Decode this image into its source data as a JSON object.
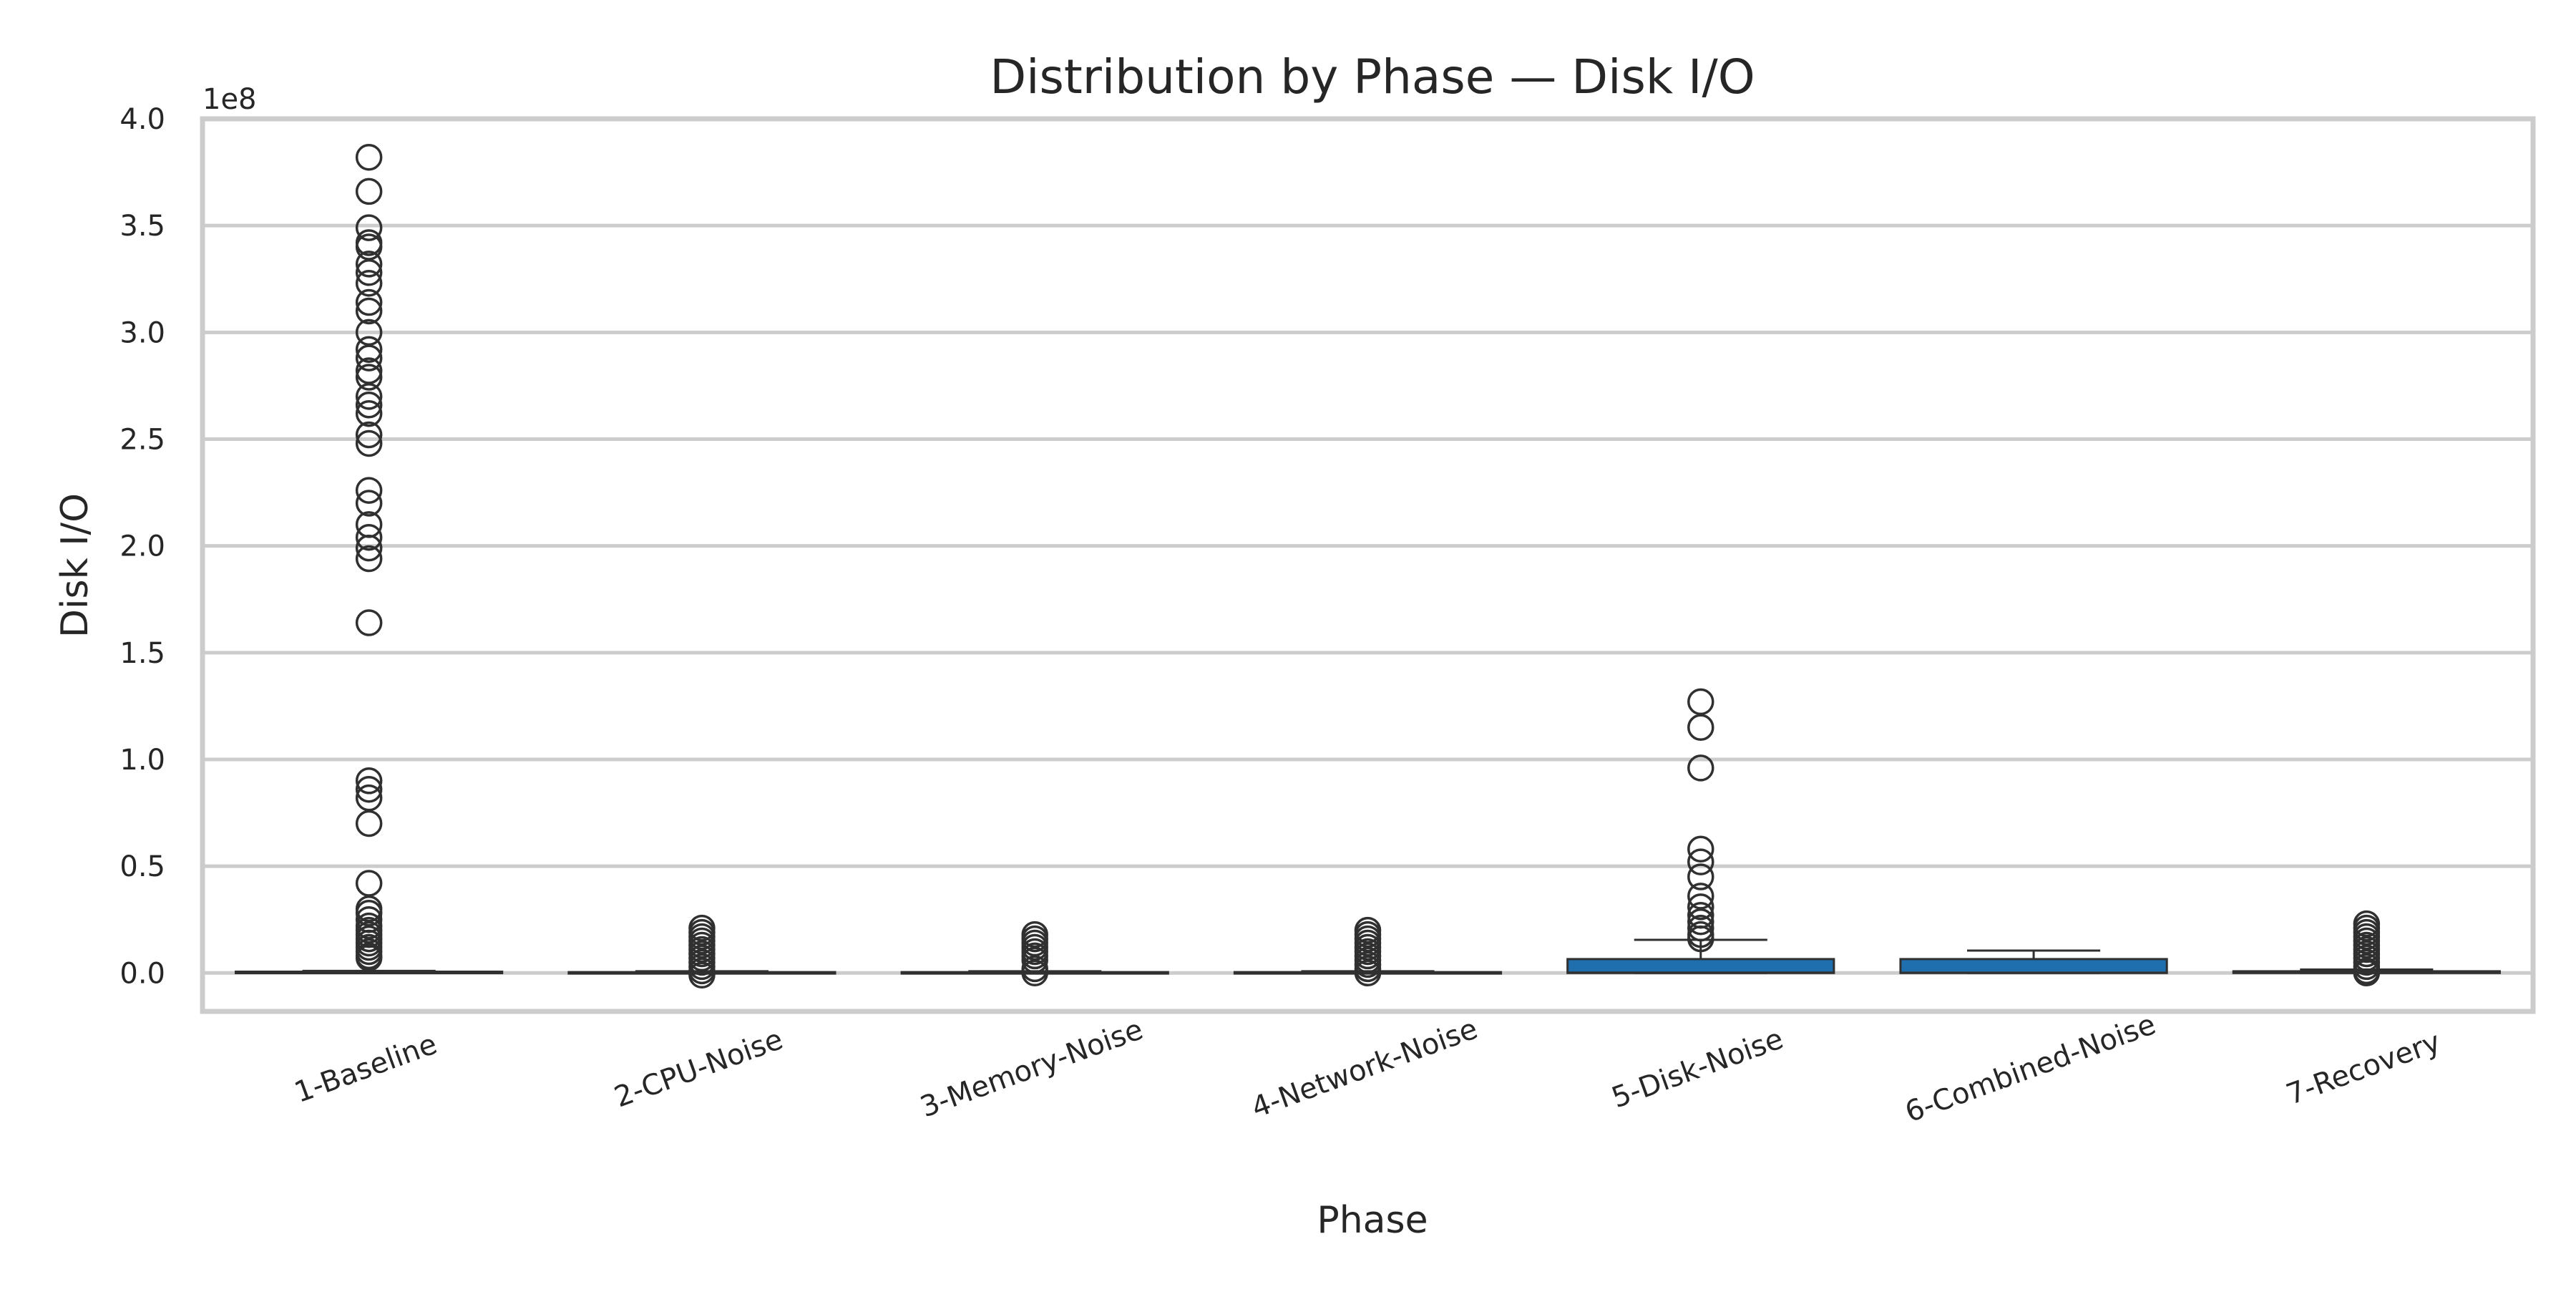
{
  "chart_data": {
    "type": "box",
    "title": "Distribution by Phase — Disk I/O",
    "xlabel": "Phase",
    "ylabel": "Disk I/O",
    "y_offset_label": "1e8",
    "ylim": [
      -0.18,
      4.0
    ],
    "yticks": [
      0.0,
      0.5,
      1.0,
      1.5,
      2.0,
      2.5,
      3.0,
      3.5,
      4.0
    ],
    "ytick_labels": [
      "0.0",
      "0.5",
      "1.0",
      "1.5",
      "2.0",
      "2.5",
      "3.0",
      "3.5",
      "4.0"
    ],
    "grid": "horizontal",
    "box_color": "#1f6fae",
    "categories": [
      "1-Baseline",
      "2-CPU-Noise",
      "3-Memory-Noise",
      "4-Network-Noise",
      "5-Disk-Noise",
      "6-Combined-Noise",
      "7-Recovery"
    ],
    "boxes": [
      {
        "q1": 0.0,
        "median": 0.002,
        "q3": 0.006,
        "whisker_low": 0.0,
        "whisker_high": 0.01,
        "outliers": [
          3.82,
          3.66,
          3.49,
          3.42,
          3.4,
          3.32,
          3.28,
          3.23,
          3.14,
          3.1,
          3.0,
          2.92,
          2.88,
          2.82,
          2.79,
          2.7,
          2.66,
          2.62,
          2.52,
          2.48,
          2.26,
          2.2,
          2.1,
          2.04,
          1.99,
          1.94,
          1.64,
          0.9,
          0.86,
          0.82,
          0.7,
          0.42,
          0.3,
          0.28,
          0.25,
          0.22,
          0.2,
          0.18,
          0.16,
          0.14,
          0.12,
          0.1,
          0.08,
          0.07
        ]
      },
      {
        "q1": 0.0,
        "median": 0.001,
        "q3": 0.004,
        "whisker_low": 0.0,
        "whisker_high": 0.008,
        "outliers": [
          0.21,
          0.19,
          0.17,
          0.15,
          0.13,
          0.11,
          0.09,
          0.07,
          0.05,
          0.03,
          0.01,
          -0.01
        ]
      },
      {
        "q1": 0.0,
        "median": 0.001,
        "q3": 0.004,
        "whisker_low": 0.0,
        "whisker_high": 0.008,
        "outliers": [
          0.18,
          0.16,
          0.14,
          0.12,
          0.1,
          0.08,
          0.06,
          0.02,
          0.0
        ]
      },
      {
        "q1": 0.0,
        "median": 0.001,
        "q3": 0.004,
        "whisker_low": 0.0,
        "whisker_high": 0.008,
        "outliers": [
          0.2,
          0.18,
          0.16,
          0.14,
          0.12,
          0.1,
          0.08,
          0.06,
          0.04,
          0.02,
          0.0
        ]
      },
      {
        "q1": 0.0,
        "median": 0.002,
        "q3": 0.065,
        "whisker_low": 0.0,
        "whisker_high": 0.155,
        "outliers": [
          1.27,
          1.15,
          0.96,
          0.58,
          0.52,
          0.45,
          0.36,
          0.31,
          0.27,
          0.24,
          0.21,
          0.18,
          0.16
        ]
      },
      {
        "q1": 0.0,
        "median": 0.001,
        "q3": 0.065,
        "whisker_low": 0.0,
        "whisker_high": 0.105,
        "outliers": []
      },
      {
        "q1": 0.0,
        "median": 0.002,
        "q3": 0.008,
        "whisker_low": 0.0,
        "whisker_high": 0.016,
        "outliers": [
          0.23,
          0.21,
          0.19,
          0.17,
          0.15,
          0.13,
          0.11,
          0.09,
          0.07,
          0.05,
          0.03,
          0.01,
          0.0
        ]
      }
    ]
  }
}
